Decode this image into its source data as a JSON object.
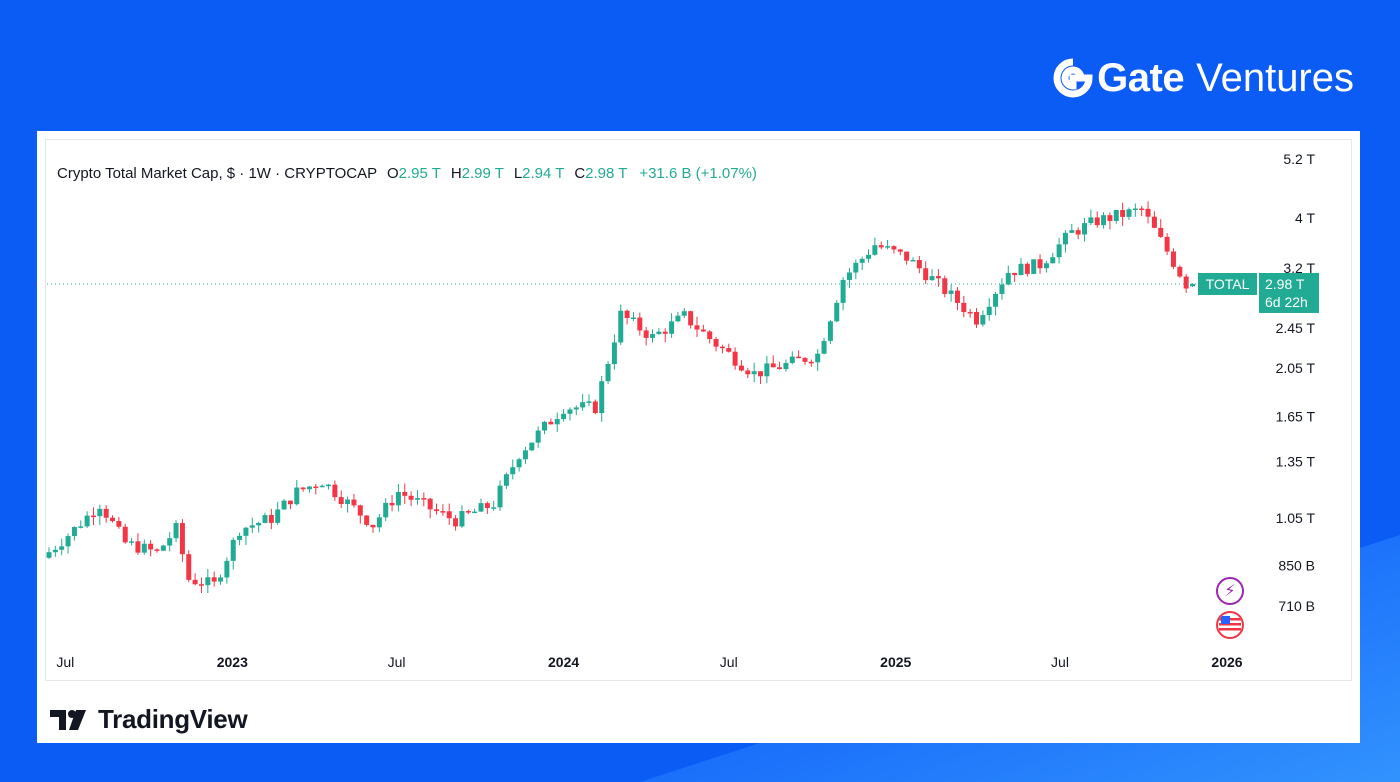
{
  "brand": {
    "name": "Gate",
    "sub": "Ventures"
  },
  "footer": {
    "logo_text": "TradingView"
  },
  "legend": {
    "symbol": "Crypto Total Market Cap, $ · 1W · CRYPTOCAP",
    "o_label": "O",
    "o_value": "2.95 T",
    "h_label": "H",
    "h_value": "2.99 T",
    "l_label": "L",
    "l_value": "2.94 T",
    "c_label": "C",
    "c_value": "2.98 T",
    "change": "+31.6 B (+1.07%)"
  },
  "price_tag": {
    "name": "TOTAL",
    "value": "2.98 T",
    "countdown": "6d 22h"
  },
  "colors": {
    "up": "#22ab94",
    "down": "#f23645",
    "background": "#0b5cf5",
    "tag": "#22ab94"
  },
  "icons": {
    "event_top": "lightning-icon",
    "event_bottom": "us-flag-icon"
  },
  "chart_data": {
    "type": "candlestick",
    "scale": "log",
    "y_unit": "T",
    "y_ticks": [
      {
        "label": "5.2 T",
        "value": 5.2
      },
      {
        "label": "4 T",
        "value": 4.0
      },
      {
        "label": "3.2 T",
        "value": 3.2
      },
      {
        "label": "2.45 T",
        "value": 2.45
      },
      {
        "label": "2.05 T",
        "value": 2.05
      },
      {
        "label": "1.65 T",
        "value": 1.65
      },
      {
        "label": "1.35 T",
        "value": 1.35
      },
      {
        "label": "1.05 T",
        "value": 1.05
      },
      {
        "label": "850 B",
        "value": 0.85
      },
      {
        "label": "710 B",
        "value": 0.71
      }
    ],
    "x_ticks": [
      {
        "label": "Jul",
        "date": "2022-07-01",
        "major": false
      },
      {
        "label": "2023",
        "date": "2023-01-01",
        "major": true
      },
      {
        "label": "Jul",
        "date": "2023-07-01",
        "major": false
      },
      {
        "label": "2024",
        "date": "2024-01-01",
        "major": true
      },
      {
        "label": "Jul",
        "date": "2024-07-01",
        "major": false
      },
      {
        "label": "2025",
        "date": "2025-01-01",
        "major": true
      },
      {
        "label": "Jul",
        "date": "2025-07-01",
        "major": false
      },
      {
        "label": "2026",
        "date": "2026-01-01",
        "major": true
      }
    ],
    "close_trajectory": [
      [
        "2022-06-13",
        0.88
      ],
      [
        "2022-07-18",
        1.0
      ],
      [
        "2022-08-15",
        1.12
      ],
      [
        "2022-09-12",
        0.94
      ],
      [
        "2022-10-17",
        0.9
      ],
      [
        "2022-11-07",
        1.0
      ],
      [
        "2022-11-21",
        0.8
      ],
      [
        "2022-12-19",
        0.78
      ],
      [
        "2023-01-16",
        1.0
      ],
      [
        "2023-02-20",
        1.05
      ],
      [
        "2023-03-20",
        1.18
      ],
      [
        "2023-04-17",
        1.24
      ],
      [
        "2023-06-12",
        1.02
      ],
      [
        "2023-07-10",
        1.18
      ],
      [
        "2023-08-21",
        1.08
      ],
      [
        "2023-09-11",
        1.04
      ],
      [
        "2023-10-23",
        1.12
      ],
      [
        "2023-11-20",
        1.4
      ],
      [
        "2024-01-08",
        1.72
      ],
      [
        "2024-02-12",
        1.72
      ],
      [
        "2024-03-11",
        2.6
      ],
      [
        "2024-04-15",
        2.35
      ],
      [
        "2024-05-20",
        2.58
      ],
      [
        "2024-06-24",
        2.28
      ],
      [
        "2024-08-05",
        2.0
      ],
      [
        "2024-09-09",
        2.08
      ],
      [
        "2024-10-14",
        2.18
      ],
      [
        "2024-11-11",
        3.05
      ],
      [
        "2024-12-16",
        3.55
      ],
      [
        "2025-01-20",
        3.35
      ],
      [
        "2025-02-17",
        3.05
      ],
      [
        "2025-04-07",
        2.55
      ],
      [
        "2025-05-12",
        3.15
      ],
      [
        "2025-06-16",
        3.25
      ],
      [
        "2025-07-21",
        3.75
      ],
      [
        "2025-08-18",
        3.95
      ],
      [
        "2025-10-06",
        4.15
      ],
      [
        "2025-11-03",
        3.45
      ],
      [
        "2025-11-24",
        2.98
      ]
    ],
    "last": {
      "open": 2.95,
      "high": 2.99,
      "low": 2.94,
      "close": 2.98
    }
  }
}
